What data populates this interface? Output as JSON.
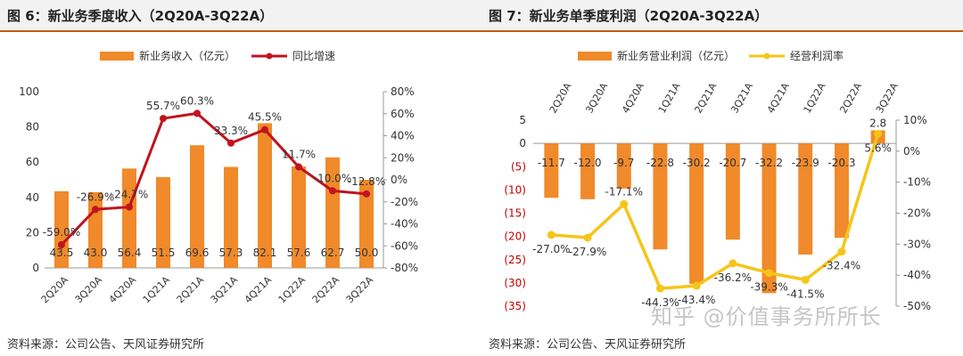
{
  "footer_source": "资料来源：公司公告、天风证券研究所",
  "watermark": "知乎 @价值事务所所长",
  "colors": {
    "bar": "#f08a2a",
    "line_left": "#c0141e",
    "line_right": "#f5c518",
    "axis": "#999999",
    "neg": "#c00000",
    "accent": "#c55a11"
  },
  "chart_data": [
    {
      "type": "bar",
      "title": "图 6：新业务季度收入（2Q20A-3Q22A）",
      "categories": [
        "2Q20A",
        "3Q20A",
        "4Q20A",
        "1Q21A",
        "2Q21A",
        "3Q21A",
        "4Q21A",
        "1Q22A",
        "2Q22A",
        "3Q22A"
      ],
      "series": [
        {
          "name": "新业务收入（亿元）",
          "type": "bar",
          "axis": "left",
          "values": [
            43.5,
            43.0,
            56.4,
            51.5,
            69.6,
            57.3,
            82.1,
            57.6,
            62.7,
            50.0
          ],
          "labels": [
            "43.5",
            "43.0",
            "56.4",
            "51.5",
            "69.6",
            "57.3",
            "82.1",
            "57.6",
            "62.7",
            "50.0"
          ]
        },
        {
          "name": "同比增速",
          "type": "line",
          "axis": "right",
          "values": [
            -59.0,
            -26.9,
            -24.7,
            55.7,
            60.3,
            33.3,
            45.5,
            11.7,
            -10.0,
            -12.8
          ],
          "labels": [
            "-59.0%",
            "-26.9%",
            "-24.7%",
            "55.7%",
            "60.3%",
            "33.3%",
            "45.5%",
            "11.7%",
            "-10.0%",
            "-12.8%"
          ]
        }
      ],
      "ylim_left": [
        0,
        100
      ],
      "yticks_left": [
        "0",
        "20",
        "40",
        "60",
        "80",
        "100"
      ],
      "ylim_right": [
        -80,
        80
      ],
      "yticks_right": [
        "-80%",
        "-60%",
        "-40%",
        "-20%",
        "0%",
        "20%",
        "40%",
        "60%",
        "80%"
      ],
      "legend": "top-center"
    },
    {
      "type": "bar",
      "title": "图 7：新业务单季度利润（2Q20A-3Q22A）",
      "categories": [
        "2Q20A",
        "3Q20A",
        "4Q20A",
        "1Q21A",
        "2Q21A",
        "3Q21A",
        "4Q21A",
        "1Q22A",
        "2Q22A",
        "3Q22A"
      ],
      "series": [
        {
          "name": "新业务营业利润（亿元）",
          "type": "bar",
          "axis": "left",
          "values": [
            -11.7,
            -12.0,
            -9.7,
            -22.8,
            -30.2,
            -20.7,
            -32.2,
            -23.9,
            -20.3,
            2.8
          ],
          "labels": [
            "-11.7",
            "-12.0",
            "-9.7",
            "-22.8",
            "-30.2",
            "-20.7",
            "-32.2",
            "-23.9",
            "-20.3",
            "2.8"
          ]
        },
        {
          "name": "经营利润率",
          "type": "line",
          "axis": "right",
          "values": [
            -27.0,
            -27.9,
            -17.1,
            -44.3,
            -43.4,
            -36.2,
            -39.3,
            -41.5,
            -32.4,
            5.6
          ],
          "labels": [
            "-27.0%",
            "-27.9%",
            "-17.1%",
            "-44.3%",
            "-43.4%",
            "-36.2%",
            "-39.3%",
            "-41.5%",
            "-32.4%",
            "5.6%"
          ]
        }
      ],
      "ylim_left": [
        -35,
        5
      ],
      "yticks_left": [
        "5",
        "0",
        "(5)",
        "(10)",
        "(15)",
        "(20)",
        "(25)",
        "(30)",
        "(35)"
      ],
      "ylim_right": [
        -50,
        10
      ],
      "yticks_right": [
        "10%",
        "0%",
        "-10%",
        "-20%",
        "-30%",
        "-40%",
        "-50%"
      ],
      "legend": "top-center",
      "category_axis_position": "top"
    }
  ]
}
